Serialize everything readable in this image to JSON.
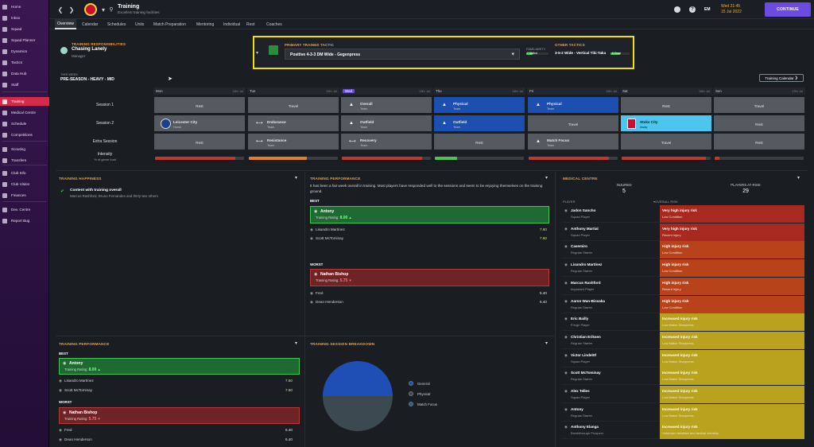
{
  "sidebar": {
    "items": [
      {
        "label": "Home",
        "active": false
      },
      {
        "label": "Inbox",
        "active": false
      },
      {
        "label": "Squad",
        "active": false
      },
      {
        "label": "Squad Planner",
        "active": false
      },
      {
        "label": "Dynamics",
        "active": false
      },
      {
        "label": "Tactics",
        "active": false
      },
      {
        "label": "Data Hub",
        "active": false
      },
      {
        "label": "Staff",
        "active": false
      },
      {
        "label": "Training",
        "active": true
      },
      {
        "label": "Medical Centre",
        "active": false
      },
      {
        "label": "Schedule",
        "active": false
      },
      {
        "label": "Competitions",
        "active": false
      },
      {
        "label": "Scouting",
        "active": false
      },
      {
        "label": "Transfers",
        "active": false
      },
      {
        "label": "Club Info",
        "active": false
      },
      {
        "label": "Club Vision",
        "active": false
      },
      {
        "label": "Finances",
        "active": false
      },
      {
        "label": "Dev. Centre",
        "active": false
      },
      {
        "label": "Report Bug",
        "active": false
      }
    ]
  },
  "header": {
    "title": "Training",
    "subtitle": "Excellent training facilities",
    "initials": "EM",
    "date_day": "Wed 21:45",
    "date_date": "15 Jul 2022",
    "continue_label": "CONTINUE",
    "help": "?"
  },
  "tabs": [
    "Overview",
    "Calendar",
    "Schedules",
    "Units",
    "Match Preparation",
    "Mentoring",
    "Individual",
    "Rest",
    "Coaches"
  ],
  "responsibilities": {
    "title": "TRAINING RESPONSIBILITIES",
    "name": "Chasing Lanely",
    "role": "Manager"
  },
  "tactics": {
    "primary_title": "PRIMARY TRAINED TACTIC",
    "primary_value": "Positive 4-3-3 DM Wide - Gegenpress",
    "familiarity_label": "FAMILIARITY",
    "familiarity_badge": "7 Skilled",
    "familiarity_fraction": 0.3,
    "other_title": "OTHER TACTICS",
    "other_value": "3-5-2 Wide - Vertical Tiki-Taka",
    "other_badge": "6 Good",
    "other_fraction": 0.5
  },
  "schedule": {
    "week_label": "THIS WEEK",
    "week_title": "PRE-SEASON - HEAVY - MID",
    "calendar_button": "Training Calendar",
    "days": [
      {
        "name": "Mon",
        "date": "11th Jul"
      },
      {
        "name": "Tue",
        "date": "12th Jul"
      },
      {
        "name": "Wed",
        "date": "13th Jul"
      },
      {
        "name": "Thu",
        "date": "14th Jul"
      },
      {
        "name": "Fri",
        "date": "15th Jul"
      },
      {
        "name": "Sat",
        "date": "16th Jul"
      },
      {
        "name": "Sun",
        "date": "17th Jul"
      }
    ],
    "row_labels": [
      "Session 1",
      "Session 2",
      "Extra Session",
      "Intensity"
    ],
    "intensity_sub": "% of game load",
    "session1": [
      {
        "title": "Rest",
        "sub": ""
      },
      {
        "title": "Travel",
        "sub": ""
      },
      {
        "title": "Overall",
        "sub": "Team"
      },
      {
        "title": "Physical",
        "sub": "Team"
      },
      {
        "title": "Physical",
        "sub": "Team"
      },
      {
        "title": "Rest",
        "sub": ""
      },
      {
        "title": "Travel",
        "sub": ""
      }
    ],
    "session2": [
      {
        "title": "Leicester City",
        "sub": "Home"
      },
      {
        "title": "Endurance",
        "sub": "Team"
      },
      {
        "title": "Outfield",
        "sub": "Team"
      },
      {
        "title": "Outfield",
        "sub": "Team"
      },
      {
        "title": "Travel",
        "sub": ""
      },
      {
        "title": "Stoke City",
        "sub": "Away"
      },
      {
        "title": "Rest",
        "sub": ""
      }
    ],
    "extra": [
      {
        "title": "Rest",
        "sub": ""
      },
      {
        "title": "Resistance",
        "sub": "Team"
      },
      {
        "title": "Recovery",
        "sub": "Team"
      },
      {
        "title": "Rest",
        "sub": ""
      },
      {
        "title": "Match Focus",
        "sub": "Team"
      },
      {
        "title": "Travel",
        "sub": ""
      },
      {
        "title": "Rest",
        "sub": ""
      }
    ],
    "intensity": [
      {
        "value": 0.9,
        "color": "#c0392b"
      },
      {
        "value": 0.65,
        "color": "#e67e22"
      },
      {
        "value": 0.9,
        "color": "#c0392b"
      },
      {
        "value": 0.25,
        "color": "#4bc25a"
      },
      {
        "value": 0.9,
        "color": "#c0392b"
      },
      {
        "value": 0.95,
        "color": "#c0392b"
      },
      {
        "value": 0.05,
        "color": "#c0392b"
      }
    ],
    "colors": {
      "gray": "#555a61",
      "blue": "#1d4fb0",
      "lightblue": "#4cc5ef",
      "dark": "#3b4046"
    }
  },
  "happiness": {
    "title": "TRAINING HAPPINESS",
    "line1": "Content with training overall",
    "line2": "Marcus Rashford, Bruno Fernandes and thirty-two others"
  },
  "performance": {
    "title": "TRAINING PERFORMANCE",
    "intro": "It has been a fair week overall in training. Most players have responded well to the sessions and seem to be enjoying themselves on the training ground.",
    "best_label": "BEST",
    "worst_label": "WORST",
    "rating_label": "Training Rating:",
    "best": {
      "name": "Antony",
      "rating": "8.00"
    },
    "best_others": [
      {
        "name": "Lisandro Martínez",
        "value": "7.60"
      },
      {
        "name": "Scott McTominay",
        "value": "7.60"
      }
    ],
    "worst": {
      "name": "Nathan Bishop",
      "rating": "5.75"
    },
    "worst_others": [
      {
        "name": "Fred",
        "value": "6.40"
      },
      {
        "name": "Dean Henderson",
        "value": "6.40"
      }
    ]
  },
  "breakdown": {
    "title": "TRAINING SESSION BREAKDOWN",
    "legend": [
      {
        "label": "General",
        "color": "#1f4fb5"
      },
      {
        "label": "Physical",
        "color": "#3d4950"
      },
      {
        "label": "Match Focus",
        "color": "#2b5a8a"
      }
    ],
    "slices": [
      0.5,
      0.5,
      0.0
    ]
  },
  "medical": {
    "title": "MEDICAL CENTRE",
    "injured_label": "INJURED",
    "injured_value": "5",
    "at_risk_label": "PLAYERS AT RISK",
    "at_risk_value": "29",
    "col_player": "PLAYER",
    "col_risk": "OVERALL RISK",
    "rows": [
      {
        "name": "Jadon Sancho",
        "sub": "Squad Player",
        "risk": "Very high injury risk",
        "note": "Low Condition",
        "level": "high"
      },
      {
        "name": "Anthony Martial",
        "sub": "Squad Player",
        "risk": "Very high injury risk",
        "note": "Recent Injury",
        "level": "high"
      },
      {
        "name": "Casemiro",
        "sub": "Regular Starter",
        "risk": "High injury risk",
        "note": "Low Condition",
        "level": "mid"
      },
      {
        "name": "Lisandro Martínez",
        "sub": "Regular Starter",
        "risk": "High injury risk",
        "note": "Low Condition",
        "level": "mid"
      },
      {
        "name": "Marcus Rashford",
        "sub": "Important Player",
        "risk": "High injury risk",
        "note": "Recent Injury",
        "level": "mid"
      },
      {
        "name": "Aaron Wan-Bissaka",
        "sub": "Regular Starter",
        "risk": "High injury risk",
        "note": "Low Condition",
        "level": "mid"
      },
      {
        "name": "Eric Bailly",
        "sub": "Fringe Player",
        "risk": "Increased injury risk",
        "note": "Low Match Sharpness",
        "level": "low"
      },
      {
        "name": "Christian Eriksen",
        "sub": "Regular Starter",
        "risk": "Increased injury risk",
        "note": "Low Match Sharpness",
        "level": "low"
      },
      {
        "name": "Victor Lindelöf",
        "sub": "Squad Player",
        "risk": "Increased injury risk",
        "note": "Low Match Sharpness",
        "level": "low"
      },
      {
        "name": "Scott McTominay",
        "sub": "Regular Starter",
        "risk": "Increased injury risk",
        "note": "Low Match Sharpness",
        "level": "low"
      },
      {
        "name": "Alex Telles",
        "sub": "Squad Player",
        "risk": "Increased injury risk",
        "note": "Low Match Sharpness",
        "level": "low"
      },
      {
        "name": "Antony",
        "sub": "Regular Starter",
        "risk": "Increased injury risk",
        "note": "Low Match Sharpness",
        "level": "low"
      },
      {
        "name": "Anthony Elanga",
        "sub": "Breakthrough Prospect",
        "risk": "Increased injury risk",
        "note": "Unknown variables and tactical intensity",
        "level": "low"
      }
    ],
    "colors": {
      "high": "#a8291f",
      "mid": "#b8421a",
      "low": "#b8a21e"
    }
  },
  "performance_lower": {
    "title": "TRAINING PERFORMANCE",
    "best_label": "BEST",
    "worst_label": "WORST",
    "rating_label": "Training Rating:",
    "best": {
      "name": "Antony",
      "rating": "8.00"
    },
    "best_others": [
      {
        "name": "Lisandro Martínez",
        "value": "7.60"
      },
      {
        "name": "Scott McTominay",
        "value": "7.60"
      }
    ],
    "worst": {
      "name": "Nathan Bishop",
      "rating": "5.75"
    },
    "worst_others": [
      {
        "name": "Fred",
        "value": "6.40"
      },
      {
        "name": "Dean Henderson",
        "value": "6.40"
      }
    ]
  }
}
